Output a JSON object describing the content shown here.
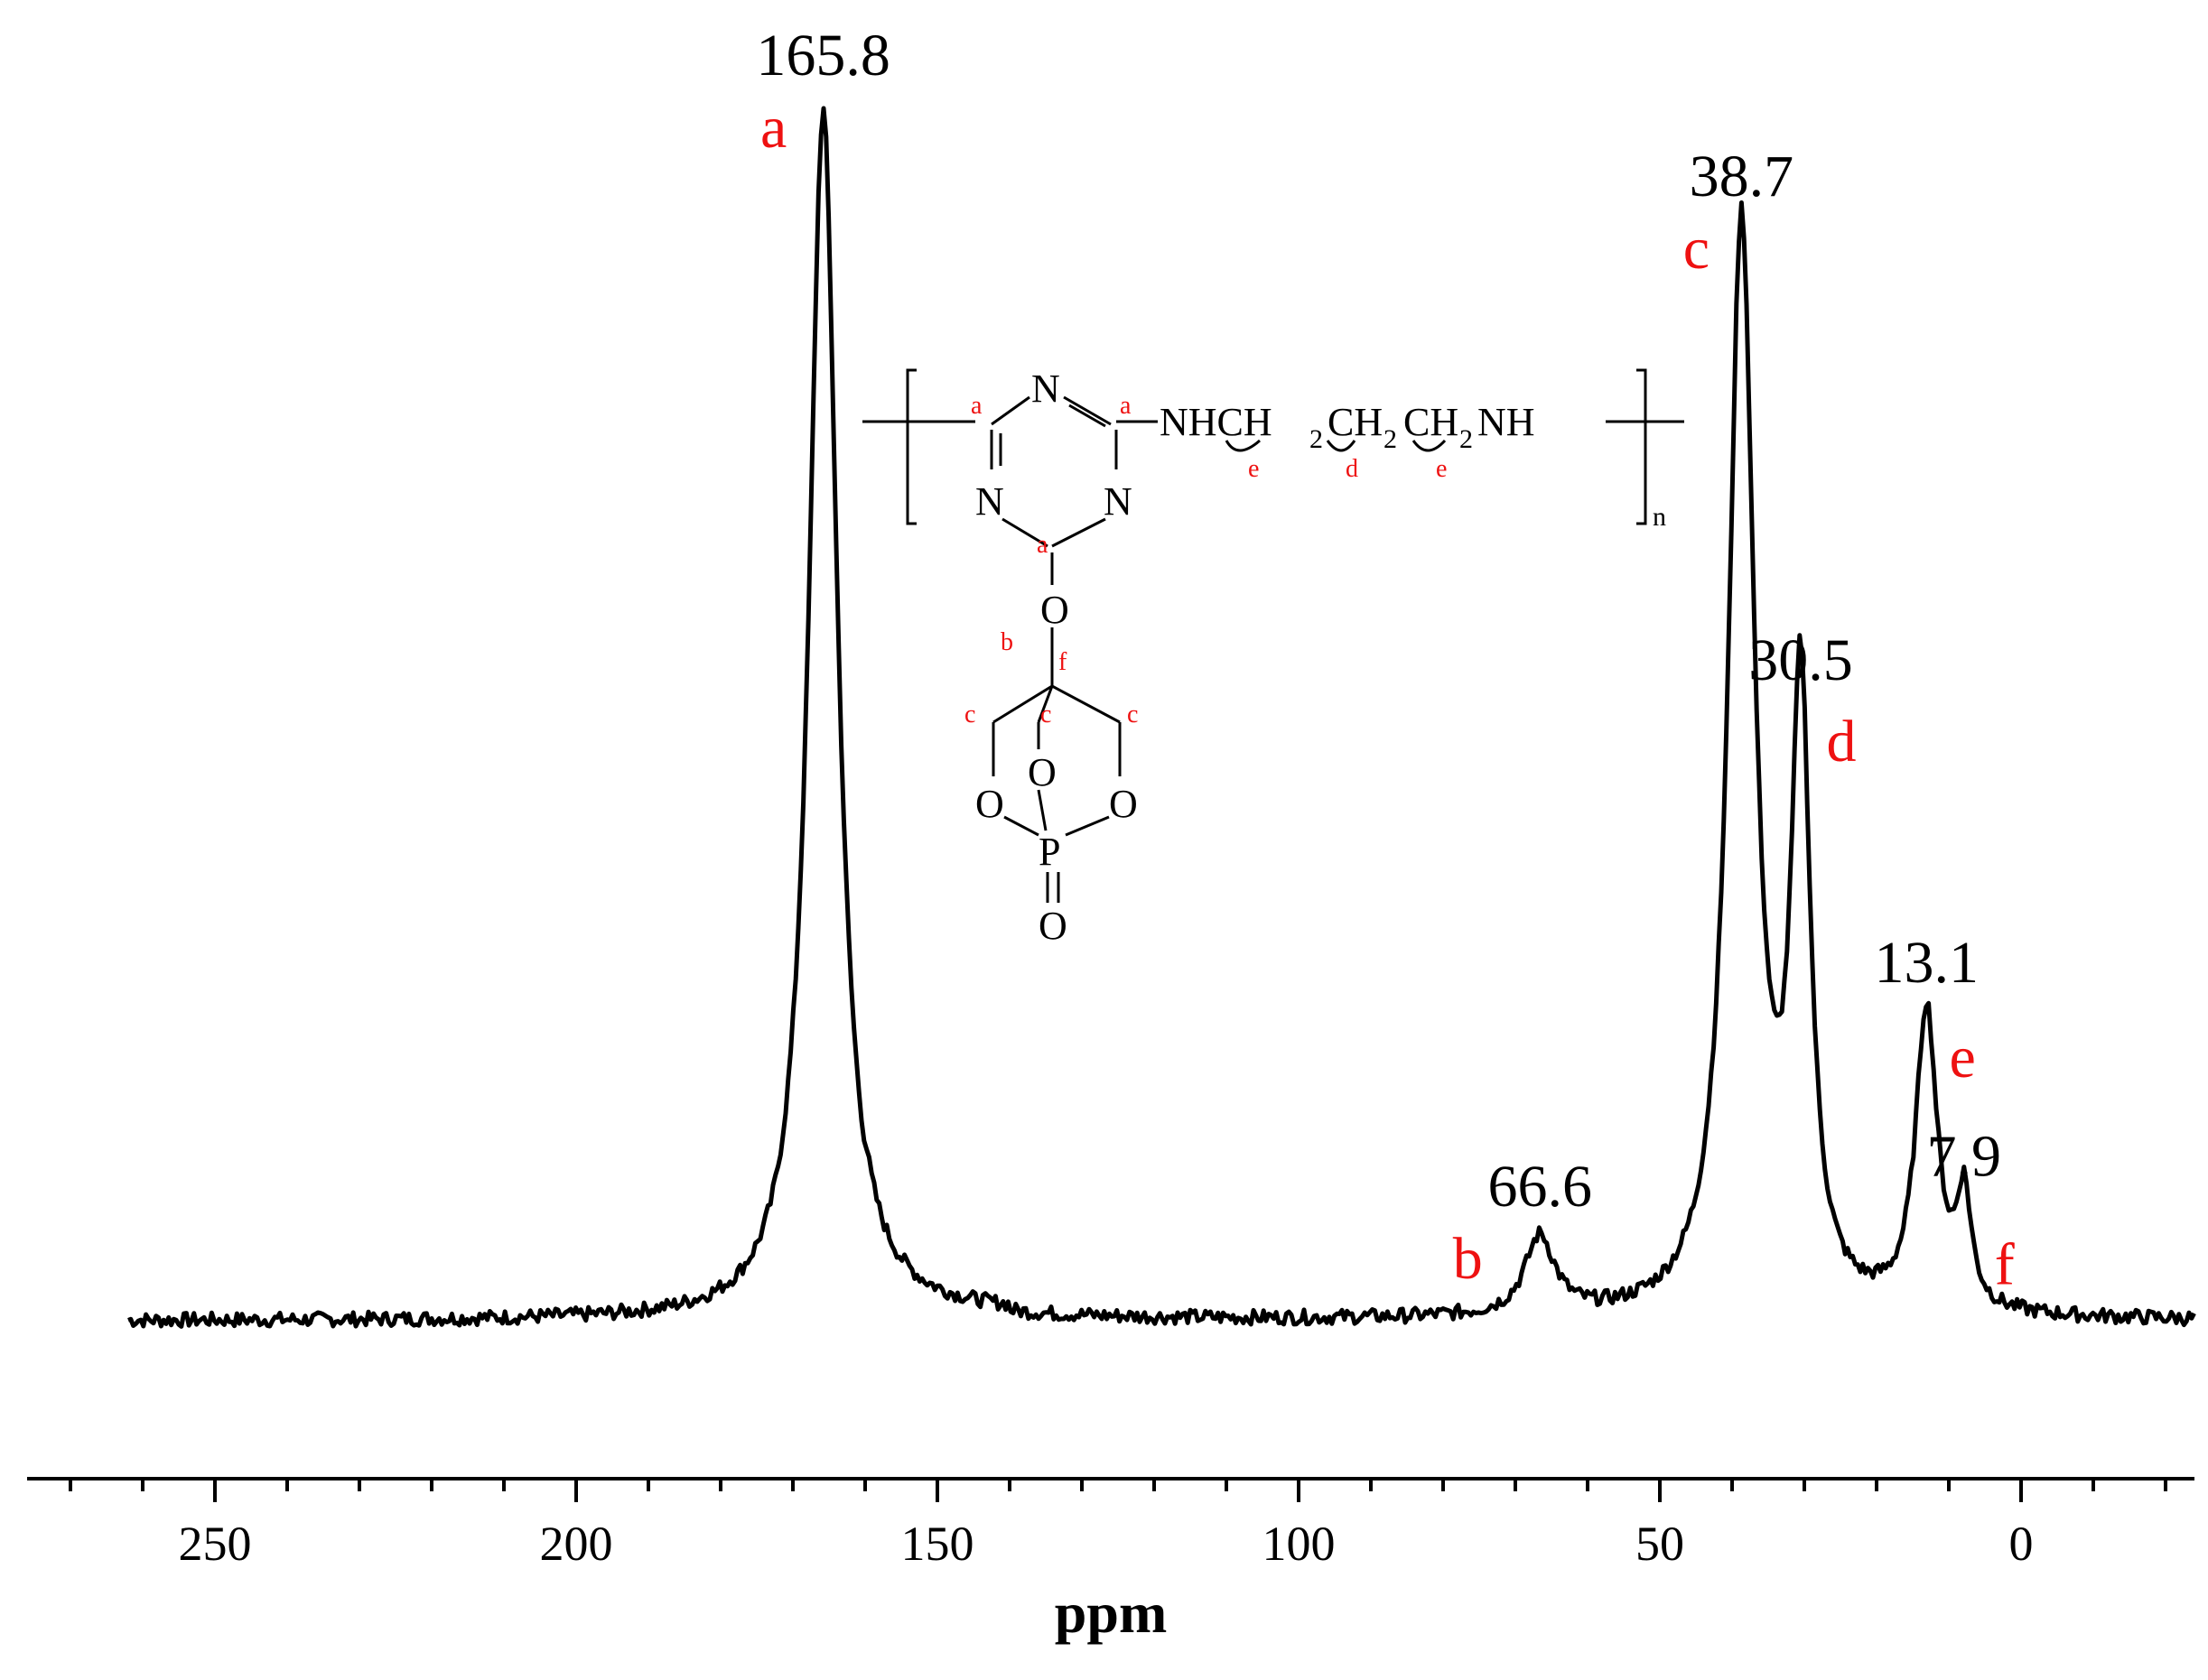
{
  "chart_data": {
    "type": "line",
    "xlabel": "ppm",
    "ylabel": "",
    "xlim": [
      276,
      -24
    ],
    "x_reversed": true,
    "x_ticks": [
      250,
      200,
      150,
      100,
      50,
      0
    ],
    "x_tick_labels": [
      "250",
      "200",
      "150",
      "100",
      "50",
      "0"
    ],
    "grid": false,
    "legend": "none",
    "line_color": "#000000",
    "label_color": "#ee1111",
    "baseline": 0.05,
    "peaks": [
      {
        "ppm": 165.8,
        "height": 1.0,
        "width": 2.4,
        "label": "165.8",
        "letter": "a"
      },
      {
        "ppm": 66.6,
        "height": 0.065,
        "width": 2.5,
        "label": "66.6",
        "letter": "b"
      },
      {
        "ppm": 38.7,
        "height": 0.9,
        "width": 2.2,
        "label": "38.7",
        "letter": "c"
      },
      {
        "ppm": 30.5,
        "height": 0.5,
        "width": 1.6,
        "label": "30.5",
        "letter": "d"
      },
      {
        "ppm": 13.1,
        "height": 0.25,
        "width": 1.8,
        "label": "13.1",
        "letter": "e"
      },
      {
        "ppm": 7.9,
        "height": 0.09,
        "width": 1.2,
        "label": "7.9",
        "letter": "f"
      }
    ]
  },
  "structure": {
    "bracket_subscript": "n",
    "ring_n": "N",
    "chain_nh_left": "NHCH",
    "chain_ch_mid": "CH",
    "chain_ch_right": "CH",
    "chain_nh_right": "NH",
    "sub_2": "2",
    "oxygen": "O",
    "phosphorus": "P",
    "carbon_labels": {
      "a": "a",
      "b": "b",
      "c": "c",
      "d": "d",
      "e": "e",
      "f": "f"
    }
  }
}
